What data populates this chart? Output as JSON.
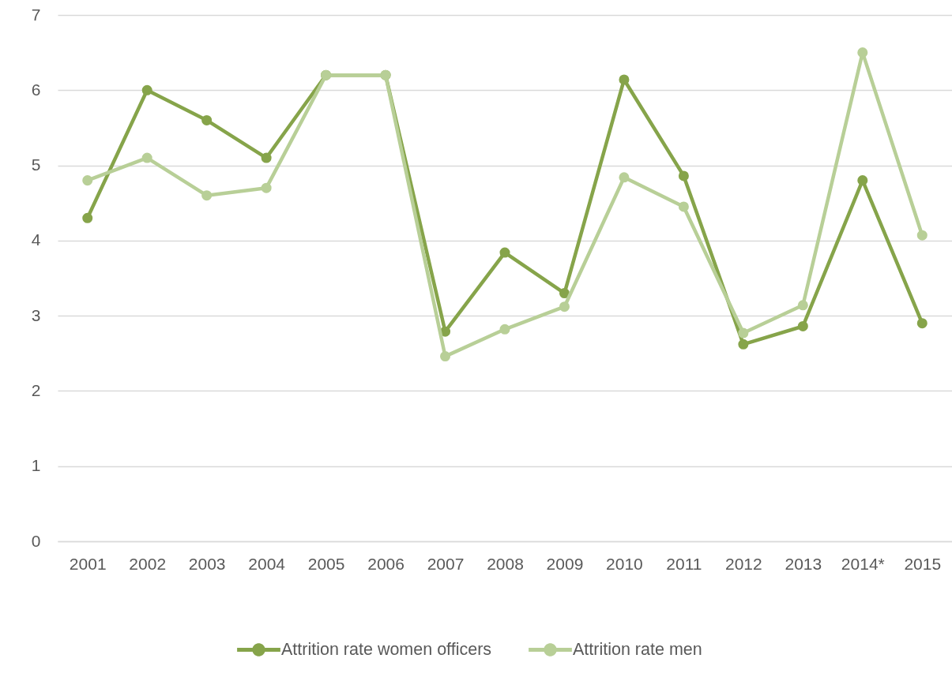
{
  "chart_data": {
    "type": "line",
    "categories": [
      "2001",
      "2002",
      "2003",
      "2004",
      "2005",
      "2006",
      "2007",
      "2008",
      "2009",
      "2010",
      "2011",
      "2012",
      "2013",
      "2014*",
      "2015"
    ],
    "series": [
      {
        "name": "Attrition rate women officers",
        "color": "#86a44a",
        "values": [
          4.3,
          6.0,
          5.6,
          5.1,
          6.2,
          6.2,
          2.79,
          3.84,
          3.3,
          6.14,
          4.86,
          2.62,
          2.86,
          4.8,
          2.9
        ]
      },
      {
        "name": "Attrition rate men",
        "color": "#b8cf97",
        "values": [
          4.8,
          5.1,
          4.6,
          4.7,
          6.2,
          6.2,
          2.46,
          2.82,
          3.12,
          4.84,
          4.45,
          2.77,
          3.14,
          6.5,
          4.07
        ]
      }
    ],
    "ylim": [
      0,
      7
    ],
    "yticks": [
      0,
      1,
      2,
      3,
      4,
      5,
      6,
      7
    ],
    "grid": "y",
    "legend": "bottom",
    "marker": "circle",
    "line_style": "solid"
  }
}
